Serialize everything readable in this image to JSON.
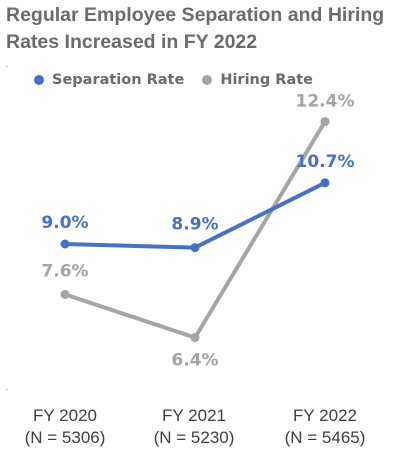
{
  "chart_data": {
    "type": "line",
    "title": "Regular Employee Separation and Hiring Rates Increased in FY 2022",
    "categories": [
      {
        "label": "FY 2020",
        "sublabel": "(N = 5306)"
      },
      {
        "label": "FY 2021",
        "sublabel": "(N = 5230)"
      },
      {
        "label": "FY 2022",
        "sublabel": "(N = 5465)"
      }
    ],
    "series": [
      {
        "name": "Separation Rate",
        "color": "#4472c4",
        "values": [
          9.0,
          8.9,
          10.7
        ],
        "labels": [
          "9.0%",
          "8.9%",
          "10.7%"
        ]
      },
      {
        "name": "Hiring Rate",
        "color": "#a5a5a5",
        "values": [
          7.6,
          6.4,
          12.4
        ],
        "labels": [
          "7.6%",
          "6.4%",
          "12.4%"
        ]
      }
    ],
    "ylim": [
      5.5,
      13.0
    ],
    "legend": "top",
    "grid": false,
    "axes_visible": false
  }
}
